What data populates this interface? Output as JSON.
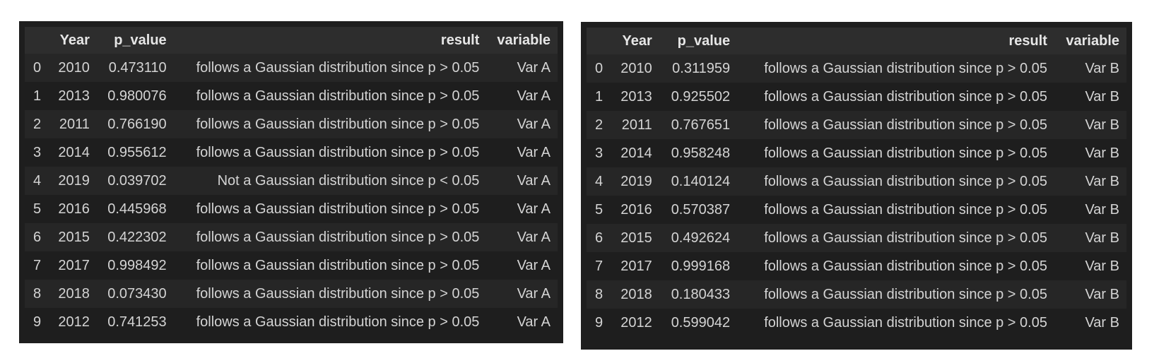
{
  "tables": [
    {
      "columns": [
        "",
        "Year",
        "p_value",
        "result",
        "variable"
      ],
      "rows": [
        {
          "idx": "0",
          "year": "2010",
          "p_value": "0.473110",
          "result": "follows a Gaussian distribution since p > 0.05",
          "variable": "Var A"
        },
        {
          "idx": "1",
          "year": "2013",
          "p_value": "0.980076",
          "result": "follows a Gaussian distribution since p > 0.05",
          "variable": "Var A"
        },
        {
          "idx": "2",
          "year": "2011",
          "p_value": "0.766190",
          "result": "follows a Gaussian distribution since p > 0.05",
          "variable": "Var A"
        },
        {
          "idx": "3",
          "year": "2014",
          "p_value": "0.955612",
          "result": "follows a Gaussian distribution since p > 0.05",
          "variable": "Var A"
        },
        {
          "idx": "4",
          "year": "2019",
          "p_value": "0.039702",
          "result": "Not a Gaussian distribution since p < 0.05",
          "variable": "Var A"
        },
        {
          "idx": "5",
          "year": "2016",
          "p_value": "0.445968",
          "result": "follows a Gaussian distribution since p > 0.05",
          "variable": "Var A"
        },
        {
          "idx": "6",
          "year": "2015",
          "p_value": "0.422302",
          "result": "follows a Gaussian distribution since p > 0.05",
          "variable": "Var A"
        },
        {
          "idx": "7",
          "year": "2017",
          "p_value": "0.998492",
          "result": "follows a Gaussian distribution since p > 0.05",
          "variable": "Var A"
        },
        {
          "idx": "8",
          "year": "2018",
          "p_value": "0.073430",
          "result": "follows a Gaussian distribution since p > 0.05",
          "variable": "Var A"
        },
        {
          "idx": "9",
          "year": "2012",
          "p_value": "0.741253",
          "result": "follows a Gaussian distribution since p > 0.05",
          "variable": "Var A"
        }
      ]
    },
    {
      "columns": [
        "",
        "Year",
        "p_value",
        "result",
        "variable"
      ],
      "rows": [
        {
          "idx": "0",
          "year": "2010",
          "p_value": "0.311959",
          "result": "follows a Gaussian distribution since p > 0.05",
          "variable": "Var B"
        },
        {
          "idx": "1",
          "year": "2013",
          "p_value": "0.925502",
          "result": "follows a Gaussian distribution since p > 0.05",
          "variable": "Var B"
        },
        {
          "idx": "2",
          "year": "2011",
          "p_value": "0.767651",
          "result": "follows a Gaussian distribution since p > 0.05",
          "variable": "Var B"
        },
        {
          "idx": "3",
          "year": "2014",
          "p_value": "0.958248",
          "result": "follows a Gaussian distribution since p > 0.05",
          "variable": "Var B"
        },
        {
          "idx": "4",
          "year": "2019",
          "p_value": "0.140124",
          "result": "follows a Gaussian distribution since p > 0.05",
          "variable": "Var B"
        },
        {
          "idx": "5",
          "year": "2016",
          "p_value": "0.570387",
          "result": "follows a Gaussian distribution since p > 0.05",
          "variable": "Var B"
        },
        {
          "idx": "6",
          "year": "2015",
          "p_value": "0.492624",
          "result": "follows a Gaussian distribution since p > 0.05",
          "variable": "Var B"
        },
        {
          "idx": "7",
          "year": "2017",
          "p_value": "0.999168",
          "result": "follows a Gaussian distribution since p > 0.05",
          "variable": "Var B"
        },
        {
          "idx": "8",
          "year": "2018",
          "p_value": "0.180433",
          "result": "follows a Gaussian distribution since p > 0.05",
          "variable": "Var B"
        },
        {
          "idx": "9",
          "year": "2012",
          "p_value": "0.599042",
          "result": "follows a Gaussian distribution since p > 0.05",
          "variable": "Var B"
        }
      ]
    }
  ],
  "colors": {
    "background": "#1e1e1e",
    "header_row": "#2d2d2d",
    "stripe_row": "#262626",
    "text": "#d4d4d4"
  }
}
